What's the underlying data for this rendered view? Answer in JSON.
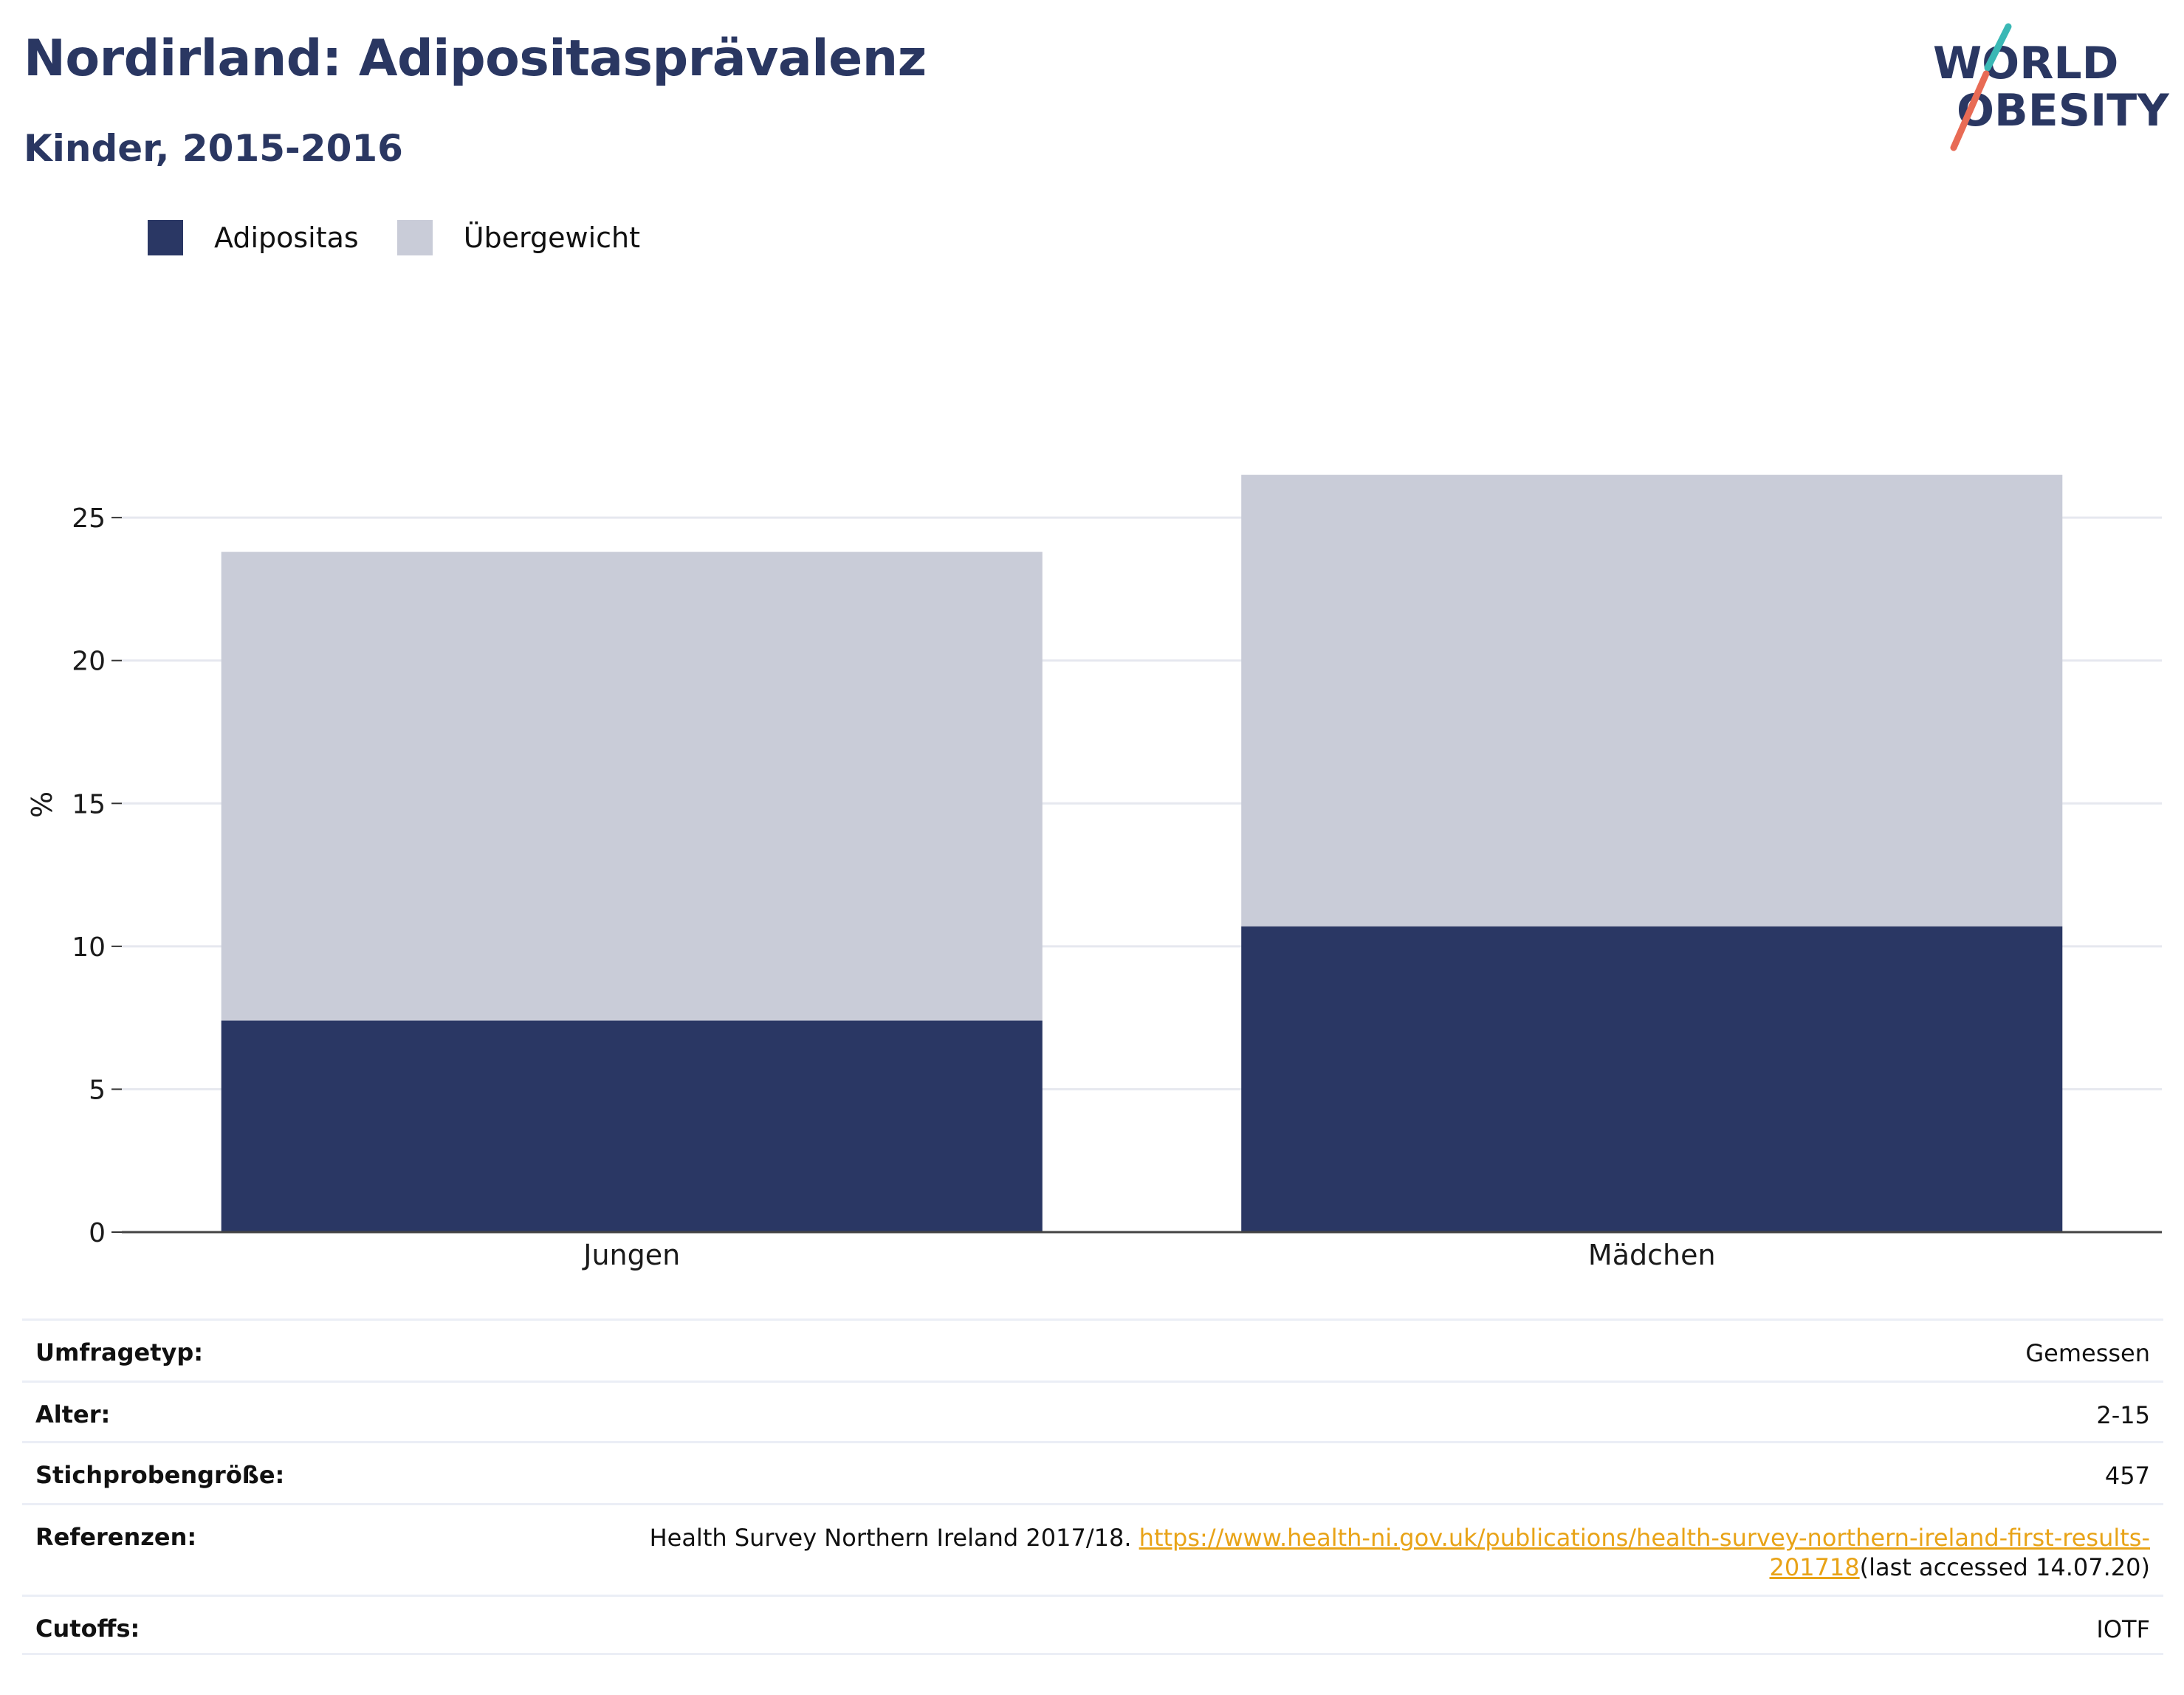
{
  "header": {
    "title": "Nordirland: Adipositasprävalenz",
    "subtitle": "Kinder, 2015-2016"
  },
  "logo": {
    "line1": "WORLD",
    "line2": "OBESITY"
  },
  "colors": {
    "adipositas": "#2a3764",
    "uebergewicht": "#c9ccd8",
    "brand": "#2a3762",
    "link": "#e8a317",
    "logo_teal": "#3ab8b5",
    "logo_coral": "#e86b55"
  },
  "chart_data": {
    "type": "bar",
    "stacked": true,
    "categories": [
      "Jungen",
      "Mädchen"
    ],
    "series": [
      {
        "name": "Adipositas",
        "values": [
          7.4,
          10.7
        ]
      },
      {
        "name": "Übergewicht",
        "values": [
          16.4,
          15.8
        ]
      }
    ],
    "ylabel": "%",
    "xlabel": "",
    "ylim": [
      0,
      28
    ],
    "yticks": [
      0,
      5,
      10,
      15,
      20,
      25
    ],
    "grid": true,
    "legend_position": "top-left"
  },
  "info": {
    "survey_type": {
      "label": "Umfragetyp:",
      "value": "Gemessen"
    },
    "age": {
      "label": "Alter:",
      "value": "2-15"
    },
    "sample_size": {
      "label": "Stichprobengröße:",
      "value": "457"
    },
    "references": {
      "label": "Referenzen:",
      "text": "Health Survey Northern Ireland 2017/18. ",
      "link": "https://www.health-ni.gov.uk/publications/health-survey-northern-ireland-first-results-201718",
      "suffix": "(last accessed 14.07.20)"
    },
    "cutoffs": {
      "label": "Cutoffs:",
      "value": "IOTF"
    }
  }
}
